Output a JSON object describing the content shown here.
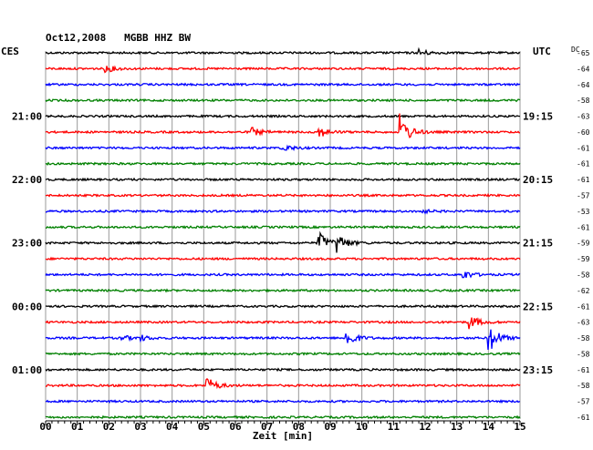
{
  "chart_data": {
    "type": "line",
    "title": "Oct12,2008   MGBB HHZ BW",
    "left_timezone": "CES",
    "right_timezone": "UTC",
    "dc_label": "DC",
    "xlabel": "Zeit [min]",
    "xlim": [
      0,
      15
    ],
    "x_ticks": [
      "00",
      "01",
      "02",
      "03",
      "04",
      "05",
      "06",
      "07",
      "08",
      "09",
      "10",
      "11",
      "12",
      "13",
      "14",
      "15"
    ],
    "trace_colors": [
      "#000000",
      "#ff0000",
      "#0000ff",
      "#008000"
    ],
    "left_hour_labels": [
      {
        "trace": 4,
        "label": "21:00"
      },
      {
        "trace": 8,
        "label": "22:00"
      },
      {
        "trace": 12,
        "label": "23:00"
      },
      {
        "trace": 16,
        "label": "00:00"
      },
      {
        "trace": 20,
        "label": "01:00"
      }
    ],
    "right_hour_labels": [
      {
        "trace": 4,
        "label": "19:15"
      },
      {
        "trace": 8,
        "label": "20:15"
      },
      {
        "trace": 12,
        "label": "21:15"
      },
      {
        "trace": 16,
        "label": "22:15"
      },
      {
        "trace": 20,
        "label": "23:15"
      }
    ],
    "dc_offsets": [
      -65,
      -64,
      -64,
      -58,
      -63,
      -60,
      -61,
      -61,
      -61,
      -57,
      -53,
      -61,
      -59,
      -59,
      -58,
      -62,
      -61,
      -63,
      -58,
      -58,
      -61,
      -58,
      -57,
      -61
    ],
    "events": [
      {
        "trace": 0,
        "minute": 11.8,
        "amplitude": 4
      },
      {
        "trace": 1,
        "minute": 1.9,
        "amplitude": 4
      },
      {
        "trace": 5,
        "minute": 6.5,
        "amplitude": 5
      },
      {
        "trace": 5,
        "minute": 8.6,
        "amplitude": 7
      },
      {
        "trace": 5,
        "minute": 11.2,
        "amplitude": 20
      },
      {
        "trace": 6,
        "minute": 7.5,
        "amplitude": 4
      },
      {
        "trace": 10,
        "minute": 11.8,
        "amplitude": 3
      },
      {
        "trace": 12,
        "minute": 8.6,
        "amplitude": 14
      },
      {
        "trace": 12,
        "minute": 9.2,
        "amplitude": 11
      },
      {
        "trace": 14,
        "minute": 13.2,
        "amplitude": 5
      },
      {
        "trace": 17,
        "minute": 13.4,
        "amplitude": 8
      },
      {
        "trace": 18,
        "minute": 2.4,
        "amplitude": 3
      },
      {
        "trace": 18,
        "minute": 3.0,
        "amplitude": 3
      },
      {
        "trace": 18,
        "minute": 9.5,
        "amplitude": 11
      },
      {
        "trace": 18,
        "minute": 14.0,
        "amplitude": 18
      },
      {
        "trace": 21,
        "minute": 5.1,
        "amplitude": 9
      }
    ]
  }
}
